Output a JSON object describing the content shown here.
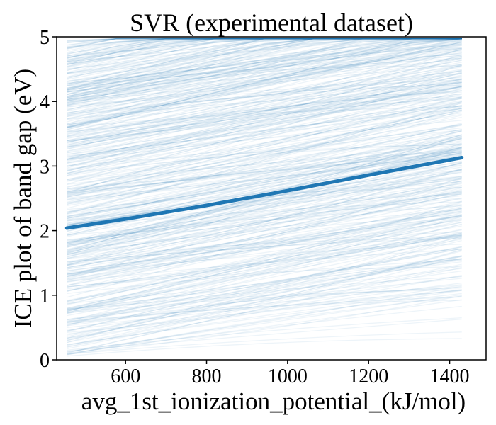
{
  "chart_data": {
    "type": "line",
    "title": "SVR (experimental dataset)",
    "xlabel": "avg_1st_ionization_potential_(kJ/mol)",
    "ylabel": "ICE plot of band gap (eV)",
    "xlim": [
      430,
      1490
    ],
    "ylim": [
      0,
      5
    ],
    "x_ticks": [
      "600",
      "800",
      "1000",
      "1200",
      "1400"
    ],
    "y_ticks": [
      "0",
      "1",
      "2",
      "3",
      "4",
      "5"
    ],
    "x_tick_values": [
      600,
      800,
      1000,
      1200,
      1400
    ],
    "y_tick_values": [
      0,
      1,
      2,
      3,
      4,
      5
    ],
    "grid": false,
    "ice_curves": {
      "count": 500,
      "x_range": [
        455,
        1430
      ],
      "start_range": [
        0.05,
        4.95
      ],
      "mean_slope_ev_per_kj_mol": 0.00115,
      "color": "#1f77b4",
      "alpha": 0.08
    },
    "series": [
      {
        "name": "",
        "x": [
          455,
          600,
          800,
          1000,
          1200,
          1430
        ],
        "y": [
          2.04,
          2.18,
          2.39,
          2.62,
          2.86,
          3.13
        ],
        "color": "#1f77b4"
      }
    ]
  }
}
